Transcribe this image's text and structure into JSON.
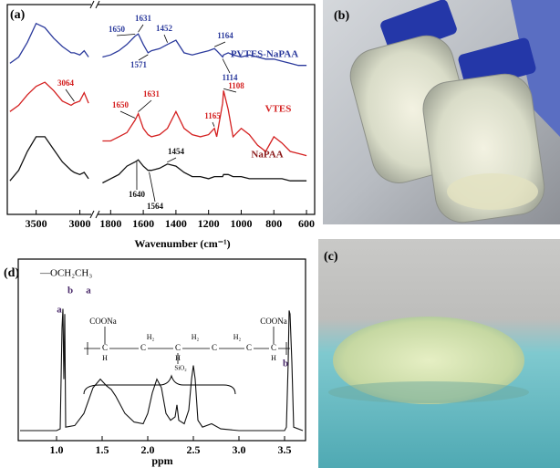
{
  "chart_data": [
    {
      "type": "line",
      "panel": "(a)",
      "xlabel": "Wavenumber (cm⁻¹)",
      "x": [
        3800,
        3700,
        3600,
        3500,
        3400,
        3300,
        3200,
        3100,
        3064,
        3000,
        2950,
        2900,
        1850,
        1800,
        1750,
        1700,
        1650,
        1631,
        1600,
        1571,
        1550,
        1500,
        1452,
        1400,
        1350,
        1300,
        1250,
        1200,
        1164,
        1150,
        1114,
        1108,
        1080,
        1050,
        1000,
        950,
        900,
        850,
        800,
        750,
        700,
        650,
        600
      ],
      "xlim": [
        [
          3830,
          2870
        ],
        [
          1880,
          550
        ]
      ],
      "xticks": [
        3500,
        3000,
        1800,
        1600,
        1400,
        1200,
        1000,
        800,
        600
      ],
      "ylim": [
        0,
        100
      ],
      "series": [
        {
          "name": "PVTES-NaPAA",
          "color": "#2b3a9c",
          "label_color": "#2b3a9c",
          "values": [
            72,
            75,
            82,
            91,
            89,
            84,
            80,
            77,
            77,
            76,
            78,
            75,
            75,
            76,
            78,
            81,
            85,
            86,
            81,
            77,
            78,
            79,
            81,
            83,
            77,
            76,
            77,
            78,
            79,
            78,
            75,
            76,
            77,
            76,
            75,
            76,
            75,
            74,
            74,
            73,
            72,
            71,
            71
          ]
        },
        {
          "name": "VTES",
          "color": "#d42020",
          "label_color": "#d42020",
          "values": [
            49,
            52,
            57,
            61,
            63,
            59,
            54,
            52,
            53,
            54,
            58,
            53,
            35,
            35,
            37,
            39,
            45,
            48,
            41,
            38,
            37,
            38,
            41,
            49,
            41,
            38,
            37,
            38,
            41,
            37,
            53,
            59,
            50,
            37,
            41,
            38,
            33,
            30,
            37,
            34,
            30,
            29,
            28
          ]
        },
        {
          "name": "NaPAA",
          "color": "#111111",
          "label_color": "#8b1a1a",
          "values": [
            16,
            21,
            30,
            37,
            37,
            31,
            25,
            21,
            20,
            19,
            20,
            17,
            15,
            17,
            19,
            23,
            25,
            26,
            23,
            21,
            21,
            22,
            24,
            23,
            20,
            18,
            18,
            17,
            18,
            18,
            18,
            19,
            19,
            18,
            18,
            17,
            17,
            17,
            17,
            17,
            16,
            16,
            16
          ]
        }
      ],
      "peaks": [
        {
          "x": 1650,
          "series": 0
        },
        {
          "x": 1631,
          "series": 0
        },
        {
          "x": 1571,
          "series": 0
        },
        {
          "x": 1452,
          "series": 0
        },
        {
          "x": 1164,
          "series": 0
        },
        {
          "x": 1114,
          "series": 0
        },
        {
          "x": 3064,
          "series": 1
        },
        {
          "x": 1650,
          "series": 1
        },
        {
          "x": 1631,
          "series": 1
        },
        {
          "x": 1108,
          "series": 1
        },
        {
          "x": 1165,
          "series": 1
        },
        {
          "x": 1454,
          "series": 2
        },
        {
          "x": 1640,
          "series": 2
        },
        {
          "x": 1564,
          "series": 2
        }
      ]
    },
    {
      "type": "line",
      "panel": "(d)",
      "xlabel": "ppm",
      "x": [
        0.6,
        0.9,
        1.0,
        1.04,
        1.06,
        1.07,
        1.08,
        1.09,
        1.1,
        1.2,
        1.3,
        1.4,
        1.48,
        1.55,
        1.6,
        1.65,
        1.75,
        1.85,
        1.95,
        2.0,
        2.05,
        2.1,
        2.15,
        2.2,
        2.25,
        2.3,
        2.32,
        2.34,
        2.4,
        2.45,
        2.48,
        2.5,
        2.52,
        2.55,
        2.6,
        2.7,
        2.8,
        3.0,
        3.3,
        3.5,
        3.52,
        3.54,
        3.55,
        3.56,
        3.58,
        3.6,
        3.7
      ],
      "xlim": [
        0.58,
        3.73
      ],
      "xticks": [
        {
          "value": 1,
          "label": "1.0"
        },
        {
          "value": 1.5,
          "label": "1.5"
        },
        {
          "value": 2,
          "label": "2.0"
        },
        {
          "value": 2.5,
          "label": "2.5"
        },
        {
          "value": 3,
          "label": "3.0"
        },
        {
          "value": 3.5,
          "label": "3.5"
        }
      ],
      "ylim": [
        0,
        100
      ],
      "series": [
        {
          "color": "#111111",
          "values": [
            0,
            0,
            0,
            1,
            60,
            71,
            30,
            68,
            2,
            3,
            10,
            25,
            30,
            26,
            24,
            20,
            10,
            5,
            4,
            10,
            22,
            30,
            25,
            10,
            6,
            8,
            15,
            6,
            4,
            12,
            30,
            38,
            30,
            6,
            2,
            4,
            1,
            0,
            0,
            0,
            2,
            40,
            70,
            68,
            40,
            2,
            0
          ]
        }
      ],
      "peak_labels": [
        {
          "text": "a",
          "x": 1.07
        },
        {
          "text": "b",
          "x": 3.55
        }
      ],
      "ethoxy": "—OCH₂CH₃",
      "ethoxy_labels": [
        "b",
        "a"
      ],
      "structure": [
        "COONa",
        "COONa",
        "H₂",
        "H₂",
        "H₂",
        "C",
        "C",
        "C",
        "C",
        "C",
        "C",
        "H",
        "H",
        "H",
        "SiO₂"
      ]
    }
  ],
  "photos": [
    "(b)",
    "(c)"
  ]
}
